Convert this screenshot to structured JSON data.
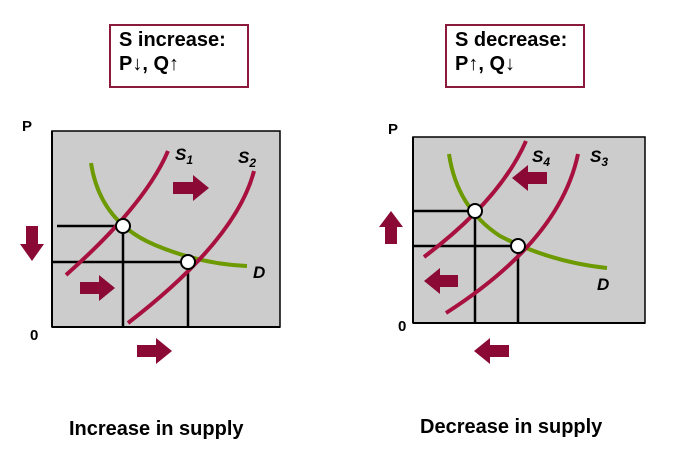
{
  "left": {
    "box_title": "S increase:",
    "box_effect": "P↓, Q↑",
    "axis_y": "P",
    "origin": "0",
    "supply_a": "S",
    "supply_a_sub": "1",
    "supply_b": "S",
    "supply_b_sub": "2",
    "demand": "D",
    "caption": "Increase in supply"
  },
  "right": {
    "box_title": "S decrease:",
    "box_effect": "P↑, Q↓",
    "axis_y": "P",
    "origin": "0",
    "supply_a": "S",
    "supply_a_sub": "4",
    "supply_b": "S",
    "supply_b_sub": "3",
    "demand": "D",
    "caption": "Decrease in supply"
  },
  "colors": {
    "supply": "#a8113f",
    "demand": "#6c9a00",
    "arrow": "#8b0a35",
    "plot_bg": "#cccccc",
    "box_border": "#8b1a3c"
  }
}
